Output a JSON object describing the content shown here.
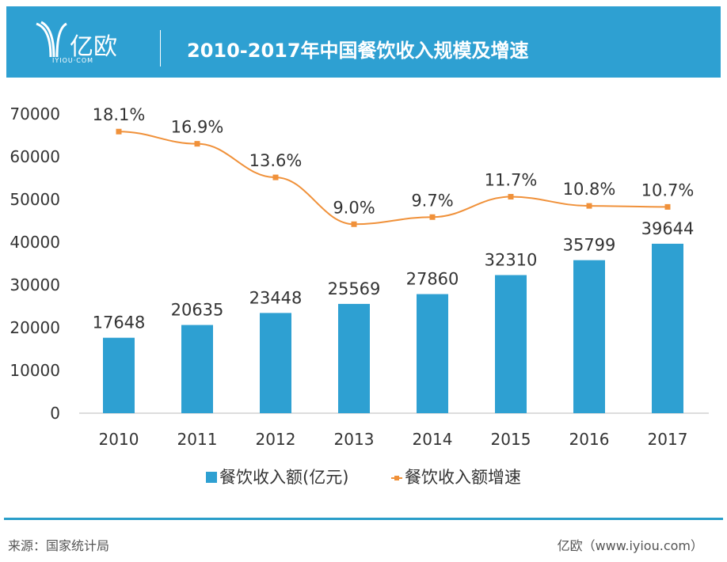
{
  "header": {
    "logo_text": "亿欧",
    "logo_sub": "IYIOU·COM",
    "title": "2010-2017年中国餐饮收入规模及增速"
  },
  "chart_data": {
    "type": "bar+line",
    "title": "2010-2017年中国餐饮收入规模及增速",
    "categories": [
      "2010",
      "2011",
      "2012",
      "2013",
      "2014",
      "2015",
      "2016",
      "2017"
    ],
    "ylim": [
      0,
      70000
    ],
    "yticks": [
      "0",
      "10000",
      "20000",
      "30000",
      "40000",
      "50000",
      "60000",
      "70000"
    ],
    "grid": false,
    "legend_position": "bottom",
    "series": [
      {
        "name": "餐饮收入额(亿元)",
        "type": "bar",
        "color": "#2ea0d2",
        "values": [
          17648,
          20635,
          23448,
          25569,
          27860,
          32310,
          35799,
          39644
        ]
      },
      {
        "name": "餐饮收入额增速",
        "type": "line",
        "color": "#f0913a",
        "values": [
          18.1,
          16.9,
          13.6,
          9.0,
          9.7,
          11.7,
          10.8,
          10.7
        ],
        "labels": [
          "18.1%",
          "16.9%",
          "13.6%",
          "9.0%",
          "9.7%",
          "11.7%",
          "10.8%",
          "10.7%"
        ]
      }
    ]
  },
  "footer": {
    "source": "来源：国家统计局",
    "credit": "亿欧（www.iyiou.com）"
  }
}
